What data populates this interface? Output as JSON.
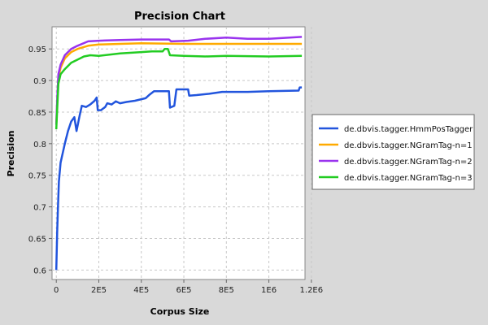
{
  "chart_data": {
    "type": "line",
    "title": "Precision Chart",
    "xlabel": "Corpus Size",
    "ylabel": "Precision",
    "xlim": [
      -20000,
      1170000
    ],
    "ylim": [
      0.585,
      0.985
    ],
    "xticks": [
      {
        "value": 0,
        "label": "0"
      },
      {
        "value": 200000,
        "label": "2E5"
      },
      {
        "value": 400000,
        "label": "4E5"
      },
      {
        "value": 600000,
        "label": "6E5"
      },
      {
        "value": 800000,
        "label": "8E5"
      },
      {
        "value": 1000000,
        "label": "1E6"
      },
      {
        "value": 1200000,
        "label": "1.2E6"
      }
    ],
    "yticks": [
      {
        "value": 0.6,
        "label": "0.6"
      },
      {
        "value": 0.65,
        "label": "0.65"
      },
      {
        "value": 0.7,
        "label": "0.7"
      },
      {
        "value": 0.75,
        "label": "0.75"
      },
      {
        "value": 0.8,
        "label": "0.8"
      },
      {
        "value": 0.85,
        "label": "0.85"
      },
      {
        "value": 0.9,
        "label": "0.9"
      },
      {
        "value": 0.95,
        "label": "0.95"
      }
    ],
    "grid": true,
    "legend_position": "right",
    "series": [
      {
        "name": "de.dbvis.tagger.HmmPosTagger",
        "color": "#2255dd",
        "points": [
          [
            0,
            0.6
          ],
          [
            4000,
            0.66
          ],
          [
            8000,
            0.7
          ],
          [
            12000,
            0.74
          ],
          [
            20000,
            0.77
          ],
          [
            30000,
            0.785
          ],
          [
            40000,
            0.8
          ],
          [
            55000,
            0.82
          ],
          [
            70000,
            0.835
          ],
          [
            85000,
            0.842
          ],
          [
            95000,
            0.82
          ],
          [
            110000,
            0.845
          ],
          [
            120000,
            0.86
          ],
          [
            140000,
            0.858
          ],
          [
            160000,
            0.862
          ],
          [
            180000,
            0.868
          ],
          [
            190000,
            0.873
          ],
          [
            195000,
            0.853
          ],
          [
            210000,
            0.853
          ],
          [
            230000,
            0.858
          ],
          [
            240000,
            0.864
          ],
          [
            260000,
            0.862
          ],
          [
            280000,
            0.867
          ],
          [
            300000,
            0.864
          ],
          [
            330000,
            0.866
          ],
          [
            370000,
            0.868
          ],
          [
            420000,
            0.872
          ],
          [
            440000,
            0.878
          ],
          [
            460000,
            0.883
          ],
          [
            530000,
            0.883
          ],
          [
            535000,
            0.857
          ],
          [
            555000,
            0.86
          ],
          [
            565000,
            0.886
          ],
          [
            620000,
            0.886
          ],
          [
            625000,
            0.876
          ],
          [
            660000,
            0.877
          ],
          [
            720000,
            0.879
          ],
          [
            780000,
            0.882
          ],
          [
            900000,
            0.882
          ],
          [
            1000000,
            0.883
          ],
          [
            1140000,
            0.884
          ],
          [
            1145000,
            0.889
          ],
          [
            1155000,
            0.889
          ]
        ]
      },
      {
        "name": "de.dbvis.tagger.NGramTag-n=1",
        "color": "#ffaa00",
        "points": [
          [
            0,
            0.83
          ],
          [
            5000,
            0.87
          ],
          [
            10000,
            0.905
          ],
          [
            20000,
            0.92
          ],
          [
            40000,
            0.935
          ],
          [
            70000,
            0.945
          ],
          [
            100000,
            0.95
          ],
          [
            150000,
            0.955
          ],
          [
            200000,
            0.957
          ],
          [
            300000,
            0.958
          ],
          [
            400000,
            0.959
          ],
          [
            600000,
            0.958
          ],
          [
            800000,
            0.958
          ],
          [
            1000000,
            0.958
          ],
          [
            1155000,
            0.958
          ]
        ]
      },
      {
        "name": "de.dbvis.tagger.NGramTag-n=2",
        "color": "#9933ee",
        "points": [
          [
            0,
            0.83
          ],
          [
            5000,
            0.875
          ],
          [
            10000,
            0.91
          ],
          [
            20000,
            0.925
          ],
          [
            40000,
            0.94
          ],
          [
            70000,
            0.95
          ],
          [
            100000,
            0.955
          ],
          [
            150000,
            0.962
          ],
          [
            200000,
            0.963
          ],
          [
            300000,
            0.964
          ],
          [
            400000,
            0.965
          ],
          [
            530000,
            0.965
          ],
          [
            540000,
            0.962
          ],
          [
            620000,
            0.963
          ],
          [
            700000,
            0.966
          ],
          [
            800000,
            0.968
          ],
          [
            900000,
            0.966
          ],
          [
            1000000,
            0.966
          ],
          [
            1155000,
            0.969
          ]
        ]
      },
      {
        "name": "de.dbvis.tagger.NGramTag-n=3",
        "color": "#22cc22",
        "points": [
          [
            0,
            0.823
          ],
          [
            5000,
            0.86
          ],
          [
            10000,
            0.895
          ],
          [
            20000,
            0.91
          ],
          [
            40000,
            0.918
          ],
          [
            70000,
            0.928
          ],
          [
            100000,
            0.933
          ],
          [
            130000,
            0.938
          ],
          [
            160000,
            0.94
          ],
          [
            200000,
            0.939
          ],
          [
            300000,
            0.943
          ],
          [
            400000,
            0.945
          ],
          [
            450000,
            0.946
          ],
          [
            500000,
            0.946
          ],
          [
            510000,
            0.95
          ],
          [
            525000,
            0.95
          ],
          [
            535000,
            0.94
          ],
          [
            600000,
            0.939
          ],
          [
            700000,
            0.938
          ],
          [
            800000,
            0.939
          ],
          [
            1000000,
            0.938
          ],
          [
            1155000,
            0.939
          ]
        ]
      }
    ]
  }
}
